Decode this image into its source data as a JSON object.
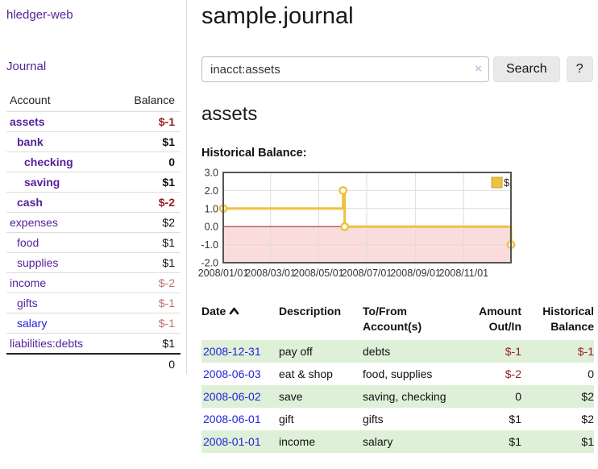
{
  "colors": {
    "link_purple": "#552299",
    "link_blue": "#2222dd",
    "neg_strong": "#941f1f",
    "neg_weak": "#bb7272",
    "row_highlight": "#dff0d8",
    "series_yellow": "#edc240"
  },
  "sidebar": {
    "brand": "hledger-web",
    "journal_link": "Journal",
    "accounts": {
      "header_account": "Account",
      "header_balance": "Balance",
      "rows": [
        {
          "name": "assets",
          "balance": "$-1",
          "depth": 1,
          "bold": true,
          "balance_style": "neg-strong",
          "link_color": "purple"
        },
        {
          "name": "bank",
          "balance": "$1",
          "depth": 2,
          "bold": true,
          "balance_style": "pos",
          "link_color": "purple"
        },
        {
          "name": "checking",
          "balance": "0",
          "depth": 3,
          "bold": true,
          "balance_style": "pos",
          "link_color": "purple"
        },
        {
          "name": "saving",
          "balance": "$1",
          "depth": 3,
          "bold": true,
          "balance_style": "pos",
          "link_color": "purple"
        },
        {
          "name": "cash",
          "balance": "$-2",
          "depth": 2,
          "bold": true,
          "balance_style": "neg-strong",
          "link_color": "purple"
        },
        {
          "name": "expenses",
          "balance": "$2",
          "depth": 1,
          "bold": false,
          "balance_style": "pos",
          "link_color": "purple"
        },
        {
          "name": "food",
          "balance": "$1",
          "depth": 2,
          "bold": false,
          "balance_style": "pos",
          "link_color": "purple"
        },
        {
          "name": "supplies",
          "balance": "$1",
          "depth": 2,
          "bold": false,
          "balance_style": "pos",
          "link_color": "purple"
        },
        {
          "name": "income",
          "balance": "$-2",
          "depth": 1,
          "bold": false,
          "balance_style": "neg-weak",
          "link_color": "purple"
        },
        {
          "name": "gifts",
          "balance": "$-1",
          "depth": 2,
          "bold": false,
          "balance_style": "neg-weak",
          "link_color": "purple"
        },
        {
          "name": "salary",
          "balance": "$-1",
          "depth": 2,
          "bold": false,
          "balance_style": "neg-weak",
          "link_color": "blue"
        },
        {
          "name": "liabilities:debts",
          "balance": "$1",
          "depth": 1,
          "bold": false,
          "balance_style": "pos",
          "link_color": "purple"
        }
      ],
      "total": "0"
    }
  },
  "main": {
    "title": "sample.journal",
    "search": {
      "value": "inacct:assets",
      "clear_label": "×",
      "button_label": "Search",
      "help_label": "?"
    },
    "account_heading": "assets",
    "chart_title": "Historical Balance:",
    "register": {
      "headers": {
        "date": "Date",
        "description": "Description",
        "account": "To/From Account(s)",
        "amount": "Amount Out/In",
        "balance": "Historical Balance"
      },
      "rows": [
        {
          "date": "2008-12-31",
          "description": "pay off",
          "account": "debts",
          "amount": "$-1",
          "balance": "$-1",
          "amount_negative": true,
          "balance_negative": true,
          "highlight": true
        },
        {
          "date": "2008-06-03",
          "description": "eat & shop",
          "account": "food, supplies",
          "amount": "$-2",
          "balance": "0",
          "amount_negative": true,
          "balance_negative": false,
          "highlight": false
        },
        {
          "date": "2008-06-02",
          "description": "save",
          "account": "saving, checking",
          "amount": "0",
          "balance": "$2",
          "amount_negative": false,
          "balance_negative": false,
          "highlight": true
        },
        {
          "date": "2008-06-01",
          "description": "gift",
          "account": "gifts",
          "amount": "$1",
          "balance": "$2",
          "amount_negative": false,
          "balance_negative": false,
          "highlight": false
        },
        {
          "date": "2008-01-01",
          "description": "income",
          "account": "salary",
          "amount": "$1",
          "balance": "$1",
          "amount_negative": false,
          "balance_negative": false,
          "highlight": true
        }
      ]
    }
  },
  "chart_data": {
    "type": "line",
    "title": "Historical Balance:",
    "step": true,
    "series": [
      {
        "name": "$",
        "color": "#edc240",
        "points": [
          {
            "x": "2008-01-01",
            "y": 1
          },
          {
            "x": "2008-06-01",
            "y": 2
          },
          {
            "x": "2008-06-03",
            "y": 0
          },
          {
            "x": "2008-12-31",
            "y": -1
          }
        ]
      }
    ],
    "x_range": [
      "2008-01-01",
      "2008-12-31"
    ],
    "ylim": [
      -2.0,
      3.0
    ],
    "y_ticks": [
      "3.0",
      "2.0",
      "1.0",
      "0.0",
      "-1.0",
      "-2.0"
    ],
    "x_ticks": [
      "2008/01/01",
      "2008/03/01",
      "2008/05/01",
      "2008/07/01",
      "2008/09/01",
      "2008/11/01"
    ],
    "grid": true,
    "legend": {
      "label": "$",
      "position": "top-right"
    },
    "negative_fill": "#fbdcdc",
    "zero_line_color": "#a33535",
    "border_color": "#545454",
    "grid_color": "#dddddd"
  }
}
